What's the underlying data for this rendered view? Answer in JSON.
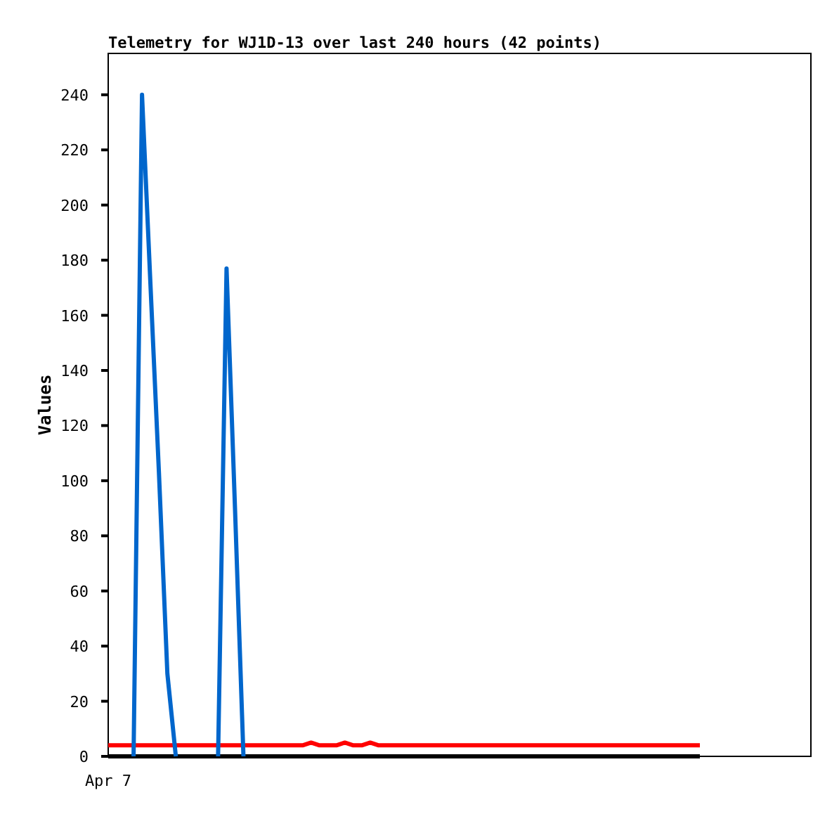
{
  "chart_data": {
    "type": "line",
    "title": "Telemetry for WJ1D-13 over last 240 hours (42 points)",
    "ylabel": "Values",
    "annotations": [
      "Apr 7"
    ],
    "categories": [
      null,
      null,
      null,
      null,
      null,
      null,
      null,
      null,
      null,
      null,
      null,
      null,
      null,
      null,
      null,
      null,
      null,
      null,
      null,
      null,
      null,
      null,
      null,
      null,
      null,
      null,
      null,
      null,
      null,
      null,
      null,
      null,
      null,
      null,
      null,
      null,
      null,
      null,
      null,
      null,
      null,
      null,
      null,
      null,
      null,
      null,
      null,
      null,
      null,
      null,
      null,
      null,
      null,
      null,
      null,
      null,
      null,
      null,
      null,
      null,
      null,
      null,
      null,
      null,
      null,
      null,
      null,
      null,
      null,
      null,
      null
    ],
    "ylim": [
      0,
      255
    ],
    "yticks": [
      0,
      20,
      40,
      60,
      80,
      100,
      120,
      140,
      160,
      180,
      200,
      220,
      240
    ],
    "marker": "none",
    "series": [
      {
        "color": "#000000",
        "values": [
          0,
          0,
          0,
          0,
          0,
          0,
          0,
          0,
          0,
          0,
          0,
          0,
          0,
          0,
          0,
          0,
          0,
          0,
          0,
          0,
          0,
          0,
          0,
          0,
          0,
          0,
          0,
          0,
          0,
          0,
          0,
          0,
          0,
          0,
          0,
          0,
          0,
          0,
          0,
          0,
          0,
          0,
          0,
          0,
          0,
          0,
          0,
          0,
          0,
          0,
          0,
          0,
          0,
          0,
          0,
          0,
          0,
          0,
          0,
          0,
          0,
          0,
          0,
          0,
          0,
          0,
          0,
          0,
          0,
          0,
          0
        ]
      },
      {
        "color": "#ff0000",
        "values": [
          4,
          4,
          4,
          4,
          4,
          4,
          4,
          4,
          4,
          4,
          4,
          4,
          4,
          4,
          4,
          4,
          4,
          4,
          4,
          4,
          4,
          4,
          4,
          4,
          5,
          4,
          4,
          4,
          5,
          4,
          4,
          5,
          4,
          4,
          4,
          4,
          4,
          4,
          4,
          4,
          4,
          4,
          4,
          4,
          4,
          4,
          4,
          4,
          4,
          4,
          4,
          4,
          4,
          4,
          4,
          4,
          4,
          4,
          4,
          4,
          4,
          4,
          4,
          4,
          4,
          4,
          4,
          4,
          4,
          4,
          4
        ]
      },
      {
        "color": "#0066cc",
        "values": [
          null,
          null,
          null,
          0,
          240,
          171,
          103,
          30,
          0,
          null,
          null,
          null,
          null,
          0,
          177,
          90,
          0,
          null,
          null,
          null,
          null,
          null,
          null,
          null,
          null,
          null,
          null,
          null,
          null,
          null,
          null,
          null,
          null,
          null,
          null,
          null,
          null,
          null,
          null,
          null,
          null,
          null,
          null,
          null,
          null,
          null,
          null,
          null,
          null,
          null,
          null,
          null,
          null,
          null,
          null,
          null,
          null,
          null,
          null,
          null,
          null,
          null,
          null,
          null,
          null,
          null,
          null,
          null,
          null,
          null,
          null
        ]
      }
    ]
  }
}
